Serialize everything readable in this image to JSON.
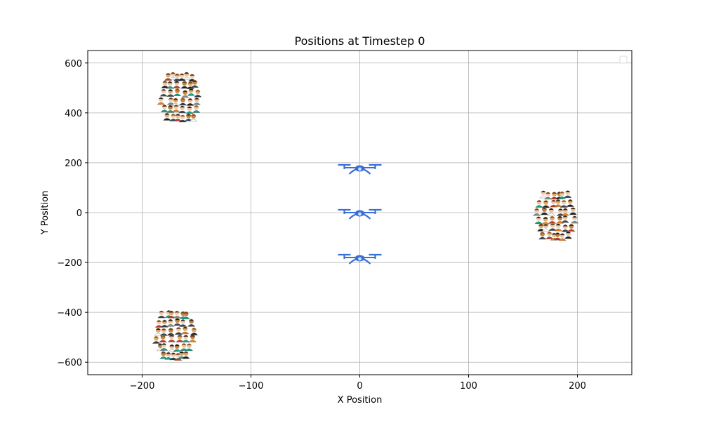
{
  "chart_data": {
    "type": "scatter",
    "title": "Positions at Timestep 0",
    "xlabel": "X Position",
    "ylabel": "Y Position",
    "xlim": [
      -250,
      250
    ],
    "ylim": [
      -650,
      650
    ],
    "xticks": [
      -200,
      -100,
      0,
      100,
      200
    ],
    "yticks": [
      -600,
      -400,
      -200,
      0,
      200,
      400,
      600
    ],
    "xtick_labels": [
      "−200",
      "−100",
      "0",
      "100",
      "200"
    ],
    "ytick_labels": [
      "−600",
      "−400",
      "−200",
      "0",
      "200",
      "400",
      "600"
    ],
    "grid": true,
    "legend": {
      "placement": "top-right",
      "entries": []
    },
    "series": [
      {
        "marker": "drone-icon",
        "color": "#3a6fd8",
        "points": [
          {
            "x": 0,
            "y": 180
          },
          {
            "x": 0,
            "y": 0
          },
          {
            "x": 0,
            "y": -180
          }
        ]
      },
      {
        "marker": "crowd-icon",
        "points": [
          {
            "x": -165,
            "y": 475
          },
          {
            "x": 180,
            "y": 0
          },
          {
            "x": -170,
            "y": -480
          }
        ]
      }
    ]
  }
}
